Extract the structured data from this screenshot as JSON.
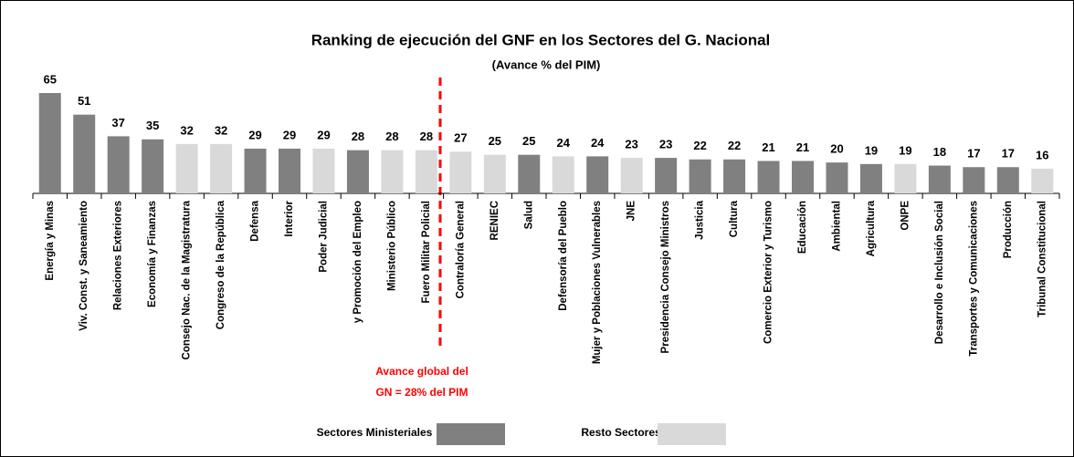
{
  "chart_data": {
    "type": "bar",
    "title": "Ranking de ejecución del GNF en los Sectores del G. Nacional",
    "subtitle": "(Avance %  del PIM)",
    "categories": [
      "Energía y Minas",
      "Viv. Const. y Saneamiento",
      "Relaciones Exteriores",
      "Economía y Finanzas",
      "Consejo Nac. de la Magistratura",
      "Congreso de la República",
      "Defensa",
      "Interior",
      "Poder Judicial",
      "y Promoción del Empleo",
      "Ministerio Público",
      "Fuero Militar Policial",
      "Contraloría General",
      "RENIEC",
      "Salud",
      "Defensoría del Pueblo",
      "Mujer y Poblaciones Vulnerables",
      "JNE",
      "Presidencia Consejo Ministros",
      "Justicia",
      "Cultura",
      "Comercio Exterior y Turismo",
      "Educación",
      "Ambiental",
      "Agricultura",
      "ONPE",
      "Desarrollo e Inclusión Social",
      "Transportes y Comunicaciones",
      "Producción",
      "Tribunal Constitucional"
    ],
    "values": [
      65,
      51,
      37,
      35,
      32,
      32,
      29,
      29,
      29,
      28,
      28,
      28,
      27,
      25,
      25,
      24,
      24,
      23,
      23,
      22,
      22,
      21,
      21,
      20,
      19,
      19,
      18,
      17,
      17,
      16
    ],
    "colors": [
      "#808080",
      "#808080",
      "#808080",
      "#808080",
      "#d9d9d9",
      "#d9d9d9",
      "#808080",
      "#808080",
      "#d9d9d9",
      "#808080",
      "#d9d9d9",
      "#d9d9d9",
      "#d9d9d9",
      "#d9d9d9",
      "#808080",
      "#d9d9d9",
      "#808080",
      "#d9d9d9",
      "#808080",
      "#808080",
      "#808080",
      "#808080",
      "#808080",
      "#808080",
      "#808080",
      "#d9d9d9",
      "#808080",
      "#808080",
      "#808080",
      "#d9d9d9"
    ],
    "legend": [
      {
        "name": "Sectores Ministeriales",
        "color": "#808080"
      },
      {
        "name": "Resto Sectores",
        "color": "#d9d9d9"
      }
    ],
    "annotation": [
      "Avance global del",
      "GN = 28% del PIM"
    ]
  }
}
